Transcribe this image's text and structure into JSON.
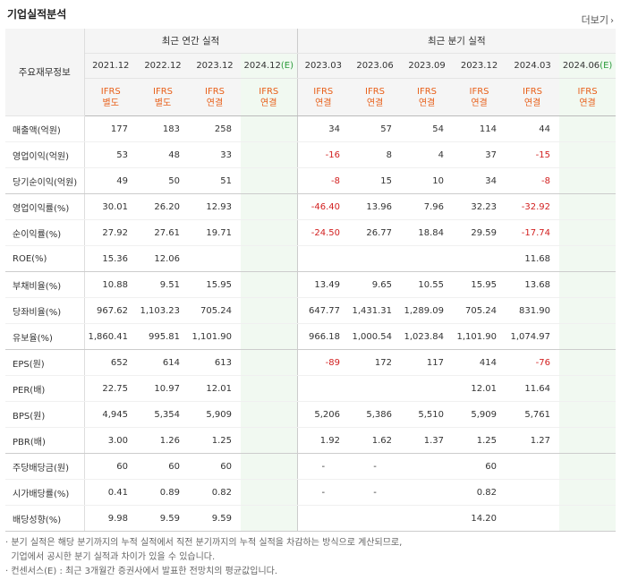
{
  "header": {
    "title": "기업실적분석",
    "more_label": "더보기"
  },
  "groups": {
    "annual": "최근 연간 실적",
    "quarter": "최근 분기 실적"
  },
  "corner_label": "주요재무정보",
  "periods": [
    {
      "label": "2021.12",
      "std1": "IFRS",
      "std2": "별도",
      "est": false
    },
    {
      "label": "2022.12",
      "std1": "IFRS",
      "std2": "별도",
      "est": false
    },
    {
      "label": "2023.12",
      "std1": "IFRS",
      "std2": "연결",
      "est": false
    },
    {
      "label": "2024.12",
      "est_mark": "(E)",
      "std1": "IFRS",
      "std2": "연결",
      "est": true
    },
    {
      "label": "2023.03",
      "std1": "IFRS",
      "std2": "연결",
      "est": false
    },
    {
      "label": "2023.06",
      "std1": "IFRS",
      "std2": "연결",
      "est": false
    },
    {
      "label": "2023.09",
      "std1": "IFRS",
      "std2": "연결",
      "est": false
    },
    {
      "label": "2023.12",
      "std1": "IFRS",
      "std2": "연결",
      "est": false
    },
    {
      "label": "2024.03",
      "std1": "IFRS",
      "std2": "연결",
      "est": false
    },
    {
      "label": "2024.06",
      "est_mark": "(E)",
      "std1": "IFRS",
      "std2": "연결",
      "est": true
    }
  ],
  "rows": [
    {
      "label": "매출액(억원)",
      "values": [
        "177",
        "183",
        "258",
        "",
        "34",
        "57",
        "54",
        "114",
        "44",
        ""
      ]
    },
    {
      "label": "영업이익(억원)",
      "values": [
        "53",
        "48",
        "33",
        "",
        "-16",
        "8",
        "4",
        "37",
        "-15",
        ""
      ]
    },
    {
      "label": "당기순이익(억원)",
      "values": [
        "49",
        "50",
        "51",
        "",
        "-8",
        "15",
        "10",
        "34",
        "-8",
        ""
      ],
      "group_end": true
    },
    {
      "label": "영업이익률(%)",
      "values": [
        "30.01",
        "26.20",
        "12.93",
        "",
        "-46.40",
        "13.96",
        "7.96",
        "32.23",
        "-32.92",
        ""
      ]
    },
    {
      "label": "순이익률(%)",
      "values": [
        "27.92",
        "27.61",
        "19.71",
        "",
        "-24.50",
        "26.77",
        "18.84",
        "29.59",
        "-17.74",
        ""
      ]
    },
    {
      "label": "ROE(%)",
      "values": [
        "15.36",
        "12.06",
        "",
        "",
        "",
        "",
        "",
        "",
        "11.68",
        ""
      ],
      "group_end": true
    },
    {
      "label": "부채비율(%)",
      "values": [
        "10.88",
        "9.51",
        "15.95",
        "",
        "13.49",
        "9.65",
        "10.55",
        "15.95",
        "13.68",
        ""
      ]
    },
    {
      "label": "당좌비율(%)",
      "values": [
        "967.62",
        "1,103.23",
        "705.24",
        "",
        "647.77",
        "1,431.31",
        "1,289.09",
        "705.24",
        "831.90",
        ""
      ]
    },
    {
      "label": "유보율(%)",
      "values": [
        "1,860.41",
        "995.81",
        "1,101.90",
        "",
        "966.18",
        "1,000.54",
        "1,023.84",
        "1,101.90",
        "1,074.97",
        ""
      ],
      "group_end": true
    },
    {
      "label": "EPS(원)",
      "values": [
        "652",
        "614",
        "613",
        "",
        "-89",
        "172",
        "117",
        "414",
        "-76",
        ""
      ]
    },
    {
      "label": "PER(배)",
      "values": [
        "22.75",
        "10.97",
        "12.01",
        "",
        "",
        "",
        "",
        "12.01",
        "11.64",
        ""
      ]
    },
    {
      "label": "BPS(원)",
      "values": [
        "4,945",
        "5,354",
        "5,909",
        "",
        "5,206",
        "5,386",
        "5,510",
        "5,909",
        "5,761",
        ""
      ]
    },
    {
      "label": "PBR(배)",
      "values": [
        "3.00",
        "1.26",
        "1.25",
        "",
        "1.92",
        "1.62",
        "1.37",
        "1.25",
        "1.27",
        ""
      ],
      "group_end": true
    },
    {
      "label": "주당배당금(원)",
      "values": [
        "60",
        "60",
        "60",
        "",
        "-",
        "-",
        "",
        "60",
        "",
        ""
      ]
    },
    {
      "label": "시가배당률(%)",
      "values": [
        "0.41",
        "0.89",
        "0.82",
        "",
        "-",
        "-",
        "",
        "0.82",
        "",
        ""
      ]
    },
    {
      "label": "배당성향(%)",
      "values": [
        "9.98",
        "9.59",
        "9.59",
        "",
        "",
        "",
        "",
        "14.20",
        "",
        ""
      ],
      "group_end": true
    }
  ],
  "notes": [
    "· 분기 실적은 해당 분기까지의 누적 실적에서 직전 분기까지의 누적 실적을 차감하는 방식으로 계산되므로,",
    "  기업에서 공시한 분기 실적과 차이가 있을 수 있습니다.",
    "· 컨센서스(E) : 최근 3개월간 증권사에서 발표한 전망치의 평균값입니다."
  ]
}
